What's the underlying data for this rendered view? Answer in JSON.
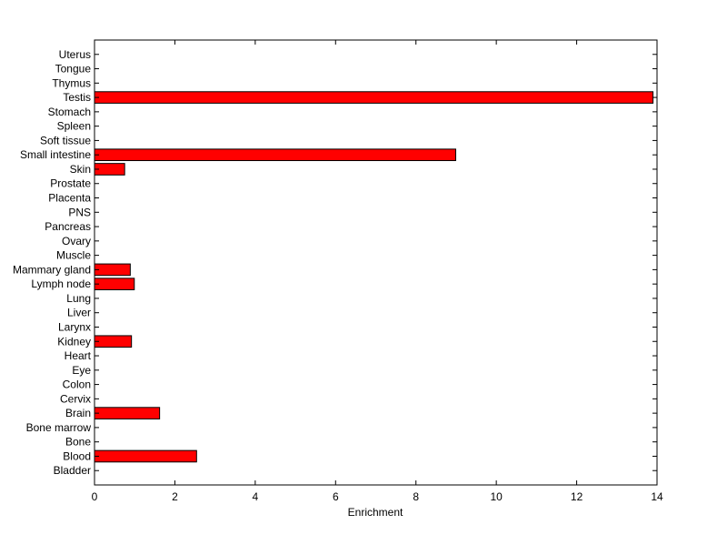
{
  "chart_data": {
    "type": "bar",
    "orientation": "horizontal",
    "xlabel": "Enrichment",
    "ylabel": "",
    "title": "",
    "xlim": [
      0,
      14
    ],
    "xticks": [
      "0",
      "2",
      "4",
      "6",
      "8",
      "10",
      "12",
      "14"
    ],
    "grid": false,
    "bar_color": "#ff0000",
    "categories": [
      "Bladder",
      "Blood",
      "Bone",
      "Bone marrow",
      "Brain",
      "Cervix",
      "Colon",
      "Eye",
      "Heart",
      "Kidney",
      "Larynx",
      "Liver",
      "Lung",
      "Lymph node",
      "Mammary gland",
      "Muscle",
      "Ovary",
      "Pancreas",
      "PNS",
      "Placenta",
      "Prostate",
      "Skin",
      "Small intestine",
      "Soft tissue",
      "Spleen",
      "Stomach",
      "Testis",
      "Thymus",
      "Tongue",
      "Uterus"
    ],
    "values": [
      0,
      2.54,
      0,
      0,
      1.62,
      0,
      0,
      0,
      0,
      0.92,
      0,
      0,
      0,
      0.99,
      0.89,
      0,
      0,
      0,
      0,
      0,
      0,
      0.75,
      8.99,
      0,
      0,
      0,
      13.9,
      0,
      0,
      0
    ]
  }
}
